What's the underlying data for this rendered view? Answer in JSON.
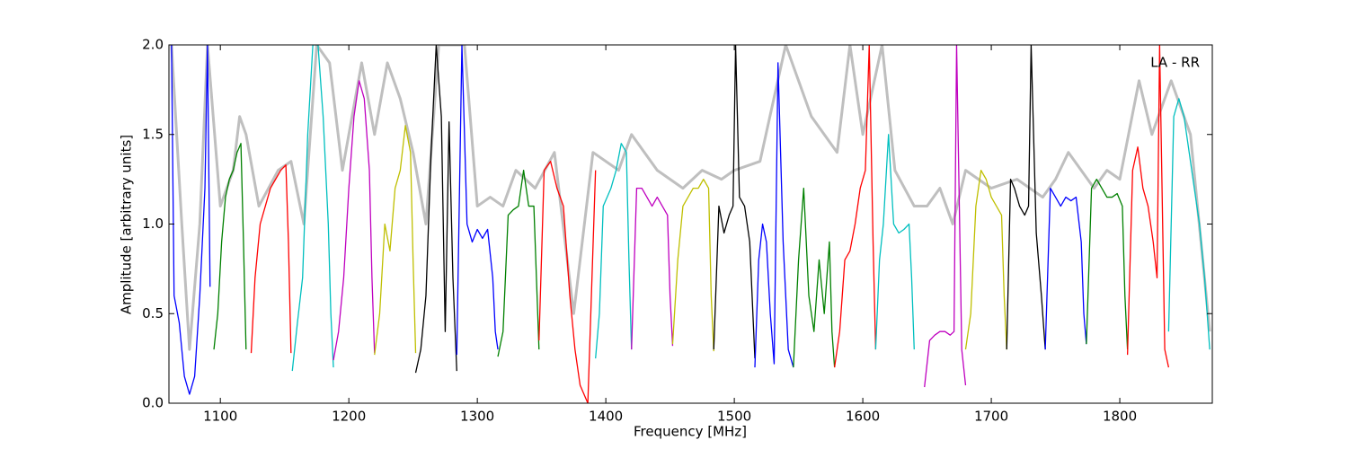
{
  "chart_data": {
    "type": "line",
    "xlabel": "Frequency [MHz]",
    "ylabel": "Amplitude [arbitrary units]",
    "annotation": "LA - RR",
    "xlim": [
      1060,
      1872
    ],
    "ylim": [
      0,
      2
    ],
    "xticks": [
      1100,
      1200,
      1300,
      1400,
      1500,
      1600,
      1700,
      1800
    ],
    "yticks": [
      {
        "value": 0,
        "label": "0.0"
      },
      {
        "value": 0.5,
        "label": "0.5"
      },
      {
        "value": 1,
        "label": "1.0"
      },
      {
        "value": 1.5,
        "label": "1.5"
      },
      {
        "value": 2,
        "label": "2.0"
      }
    ],
    "series": [
      {
        "color": "#bfbfbf",
        "x": [
          1062,
          1070,
          1076,
          1084,
          1090,
          1100,
          1110,
          1115,
          1120,
          1130,
          1145,
          1155,
          1165,
          1175,
          1185,
          1195,
          1210,
          1220,
          1230,
          1240,
          1250,
          1260,
          1270,
          1290,
          1300,
          1310,
          1320,
          1330,
          1345,
          1360,
          1375,
          1390,
          1410,
          1420,
          1440,
          1460,
          1475,
          1490,
          1500,
          1520,
          1540,
          1560,
          1580,
          1590,
          1600,
          1615,
          1625,
          1640,
          1650,
          1660,
          1670,
          1680,
          1690,
          1700,
          1720,
          1740,
          1750,
          1760,
          1780,
          1790,
          1800,
          1815,
          1825,
          1840,
          1855,
          1870
        ],
        "values": [
          2.0,
          1.0,
          0.3,
          1.0,
          2.0,
          1.1,
          1.3,
          1.6,
          1.5,
          1.1,
          1.3,
          1.35,
          1.0,
          2.0,
          1.9,
          1.3,
          1.9,
          1.5,
          1.9,
          1.7,
          1.4,
          1.0,
          2.0,
          2.0,
          1.1,
          1.15,
          1.1,
          1.3,
          1.2,
          1.4,
          0.5,
          1.4,
          1.3,
          1.5,
          1.3,
          1.2,
          1.3,
          1.25,
          1.3,
          1.35,
          2.0,
          1.6,
          1.4,
          2.0,
          1.5,
          2.0,
          1.3,
          1.1,
          1.1,
          1.2,
          1.0,
          1.3,
          1.25,
          1.2,
          1.25,
          1.15,
          1.25,
          1.4,
          1.2,
          1.3,
          1.25,
          1.8,
          1.5,
          1.8,
          1.5,
          0.4
        ]
      },
      {
        "color": "#0000ff",
        "x": [
          1062,
          1064,
          1068,
          1072,
          1076,
          1080,
          1084,
          1088,
          1090,
          1092
        ],
        "values": [
          2.0,
          0.6,
          0.45,
          0.15,
          0.05,
          0.15,
          0.6,
          1.2,
          2.0,
          0.65
        ]
      },
      {
        "color": "#008000",
        "x": [
          1095,
          1098,
          1101,
          1104,
          1107,
          1110,
          1113,
          1116,
          1118,
          1120
        ],
        "values": [
          0.3,
          0.5,
          0.9,
          1.15,
          1.25,
          1.3,
          1.4,
          1.45,
          0.9,
          0.3
        ]
      },
      {
        "color": "#ff0000",
        "x": [
          1124,
          1127,
          1131,
          1135,
          1139,
          1143,
          1147,
          1151,
          1153,
          1155
        ],
        "values": [
          0.28,
          0.7,
          1.0,
          1.1,
          1.2,
          1.25,
          1.3,
          1.33,
          0.9,
          0.28
        ]
      },
      {
        "color": "#00bfbf",
        "x": [
          1156,
          1160,
          1164,
          1168,
          1172,
          1176,
          1180,
          1184,
          1186,
          1188
        ],
        "values": [
          0.18,
          0.45,
          0.7,
          1.5,
          2.0,
          2.0,
          1.6,
          1.0,
          0.5,
          0.2
        ]
      },
      {
        "color": "#bf00bf",
        "x": [
          1188,
          1192,
          1196,
          1200,
          1204,
          1208,
          1212,
          1216,
          1218,
          1220
        ],
        "values": [
          0.24,
          0.4,
          0.7,
          1.2,
          1.6,
          1.8,
          1.7,
          1.3,
          0.7,
          0.28
        ]
      },
      {
        "color": "#bfbf00",
        "x": [
          1220,
          1224,
          1228,
          1232,
          1236,
          1240,
          1244,
          1248,
          1250,
          1252
        ],
        "values": [
          0.27,
          0.5,
          1.0,
          0.85,
          1.2,
          1.3,
          1.55,
          1.4,
          0.8,
          0.28
        ]
      },
      {
        "color": "#000000",
        "x": [
          1252,
          1256,
          1260,
          1264,
          1268,
          1272,
          1275,
          1278,
          1281,
          1284
        ],
        "values": [
          0.17,
          0.3,
          0.6,
          1.4,
          2.0,
          1.6,
          0.4,
          1.57,
          0.7,
          0.18
        ]
      },
      {
        "color": "#0000ff",
        "x": [
          1284,
          1288,
          1292,
          1296,
          1300,
          1304,
          1308,
          1312,
          1314,
          1316
        ],
        "values": [
          0.27,
          2.0,
          1.0,
          0.9,
          0.97,
          0.92,
          0.97,
          0.7,
          0.4,
          0.3
        ]
      },
      {
        "color": "#008000",
        "x": [
          1316,
          1320,
          1324,
          1328,
          1332,
          1336,
          1340,
          1344,
          1346,
          1348
        ],
        "values": [
          0.26,
          0.4,
          1.05,
          1.08,
          1.1,
          1.3,
          1.1,
          1.1,
          0.7,
          0.3
        ]
      },
      {
        "color": "#ff0000",
        "x": [
          1348,
          1352,
          1357,
          1362,
          1367,
          1372,
          1376,
          1380,
          1386,
          1392
        ],
        "values": [
          0.35,
          1.3,
          1.35,
          1.2,
          1.1,
          0.6,
          0.3,
          0.1,
          0.0,
          1.3
        ]
      },
      {
        "color": "#00bfbf",
        "x": [
          1392,
          1395,
          1398,
          1401,
          1404,
          1408,
          1412,
          1416,
          1418,
          1420
        ],
        "values": [
          0.25,
          0.5,
          1.1,
          1.15,
          1.2,
          1.3,
          1.45,
          1.4,
          0.8,
          0.3
        ]
      },
      {
        "color": "#bf00bf",
        "x": [
          1420,
          1424,
          1428,
          1432,
          1436,
          1440,
          1444,
          1448,
          1450,
          1452
        ],
        "values": [
          0.3,
          1.2,
          1.2,
          1.15,
          1.1,
          1.15,
          1.1,
          1.05,
          0.6,
          0.32
        ]
      },
      {
        "color": "#bfbf00",
        "x": [
          1452,
          1456,
          1460,
          1464,
          1468,
          1472,
          1476,
          1480,
          1482,
          1484
        ],
        "values": [
          0.33,
          0.8,
          1.1,
          1.15,
          1.2,
          1.2,
          1.25,
          1.2,
          0.6,
          0.29
        ]
      },
      {
        "color": "#000000",
        "x": [
          1484,
          1488,
          1492,
          1496,
          1499,
          1501,
          1504,
          1508,
          1512,
          1516
        ],
        "values": [
          0.3,
          1.1,
          0.95,
          1.05,
          1.1,
          2.0,
          1.15,
          1.1,
          0.9,
          0.25
        ]
      },
      {
        "color": "#0000ff",
        "x": [
          1516,
          1519,
          1522,
          1525,
          1528,
          1531,
          1534,
          1538,
          1542,
          1546
        ],
        "values": [
          0.2,
          0.8,
          1.0,
          0.9,
          0.5,
          0.22,
          1.9,
          0.9,
          0.3,
          0.2
        ]
      },
      {
        "color": "#008000",
        "x": [
          1546,
          1550,
          1554,
          1558,
          1562,
          1566,
          1570,
          1574,
          1576,
          1578
        ],
        "values": [
          0.2,
          0.8,
          1.2,
          0.6,
          0.4,
          0.8,
          0.5,
          0.9,
          0.4,
          0.2
        ]
      },
      {
        "color": "#ff0000",
        "x": [
          1578,
          1582,
          1586,
          1590,
          1594,
          1598,
          1602,
          1605,
          1608,
          1610
        ],
        "values": [
          0.2,
          0.4,
          0.8,
          0.85,
          1.0,
          1.2,
          1.3,
          2.0,
          0.9,
          0.3
        ]
      },
      {
        "color": "#00bfbf",
        "x": [
          1610,
          1613,
          1616,
          1620,
          1624,
          1628,
          1632,
          1636,
          1638,
          1640
        ],
        "values": [
          0.3,
          0.8,
          1.0,
          1.5,
          1.0,
          0.95,
          0.97,
          1.0,
          0.7,
          0.3
        ]
      },
      {
        "color": "#bf00bf",
        "x": [
          1648,
          1652,
          1656,
          1660,
          1664,
          1668,
          1671,
          1673,
          1677,
          1680
        ],
        "values": [
          0.09,
          0.35,
          0.38,
          0.4,
          0.4,
          0.38,
          0.4,
          2.0,
          0.3,
          0.1
        ]
      },
      {
        "color": "#bfbf00",
        "x": [
          1680,
          1684,
          1688,
          1692,
          1696,
          1700,
          1704,
          1708,
          1710,
          1712
        ],
        "values": [
          0.3,
          0.5,
          1.1,
          1.3,
          1.25,
          1.15,
          1.1,
          1.05,
          0.6,
          0.3
        ]
      },
      {
        "color": "#000000",
        "x": [
          1712,
          1715,
          1718,
          1722,
          1726,
          1729,
          1731,
          1735,
          1739,
          1742
        ],
        "values": [
          0.3,
          1.25,
          1.2,
          1.1,
          1.05,
          1.1,
          2.0,
          0.95,
          0.6,
          0.3
        ]
      },
      {
        "color": "#0000ff",
        "x": [
          1742,
          1746,
          1750,
          1754,
          1758,
          1762,
          1766,
          1770,
          1772,
          1774
        ],
        "values": [
          0.3,
          1.2,
          1.15,
          1.1,
          1.15,
          1.13,
          1.15,
          0.9,
          0.5,
          0.33
        ]
      },
      {
        "color": "#008000",
        "x": [
          1774,
          1778,
          1782,
          1786,
          1790,
          1794,
          1798,
          1802,
          1804,
          1806
        ],
        "values": [
          0.33,
          1.2,
          1.25,
          1.2,
          1.15,
          1.15,
          1.17,
          1.1,
          0.6,
          0.3
        ]
      },
      {
        "color": "#ff0000",
        "x": [
          1806,
          1810,
          1814,
          1818,
          1822,
          1826,
          1829,
          1831,
          1835,
          1838
        ],
        "values": [
          0.27,
          1.3,
          1.43,
          1.2,
          1.1,
          0.9,
          0.7,
          2.0,
          0.3,
          0.2
        ]
      },
      {
        "color": "#00bfbf",
        "x": [
          1838,
          1842,
          1846,
          1850,
          1854,
          1858,
          1862,
          1866,
          1868,
          1870
        ],
        "values": [
          0.4,
          1.6,
          1.7,
          1.6,
          1.4,
          1.2,
          1.0,
          0.7,
          0.5,
          0.3
        ]
      }
    ]
  }
}
